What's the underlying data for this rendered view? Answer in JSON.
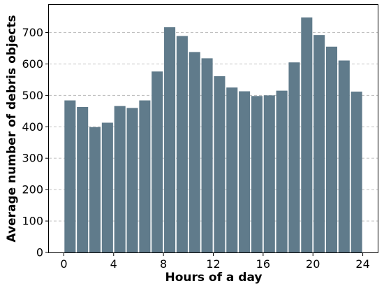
{
  "chart_data": {
    "type": "bar",
    "xlabel": "Hours of a day",
    "ylabel": "Average number of debris objects",
    "x": [
      0.5,
      1.5,
      2.5,
      3.5,
      4.5,
      5.5,
      6.5,
      7.5,
      8.5,
      9.5,
      10.5,
      11.5,
      12.5,
      13.5,
      14.5,
      15.5,
      16.5,
      17.5,
      18.5,
      19.5,
      20.5,
      21.5,
      22.5,
      23.5
    ],
    "values": [
      484,
      463,
      399,
      413,
      466,
      460,
      484,
      576,
      717,
      689,
      638,
      618,
      561,
      525,
      513,
      498,
      500,
      515,
      605,
      748,
      692,
      655,
      611,
      512
    ],
    "xlim": [
      -1.2,
      25.2
    ],
    "ylim": [
      0,
      788
    ],
    "xticks": [
      0,
      4,
      8,
      12,
      16,
      20,
      24
    ],
    "yticks": [
      0,
      100,
      200,
      300,
      400,
      500,
      600,
      700
    ],
    "bar_color": "#607b8b",
    "grid": "y-dashed",
    "legend": "none"
  }
}
